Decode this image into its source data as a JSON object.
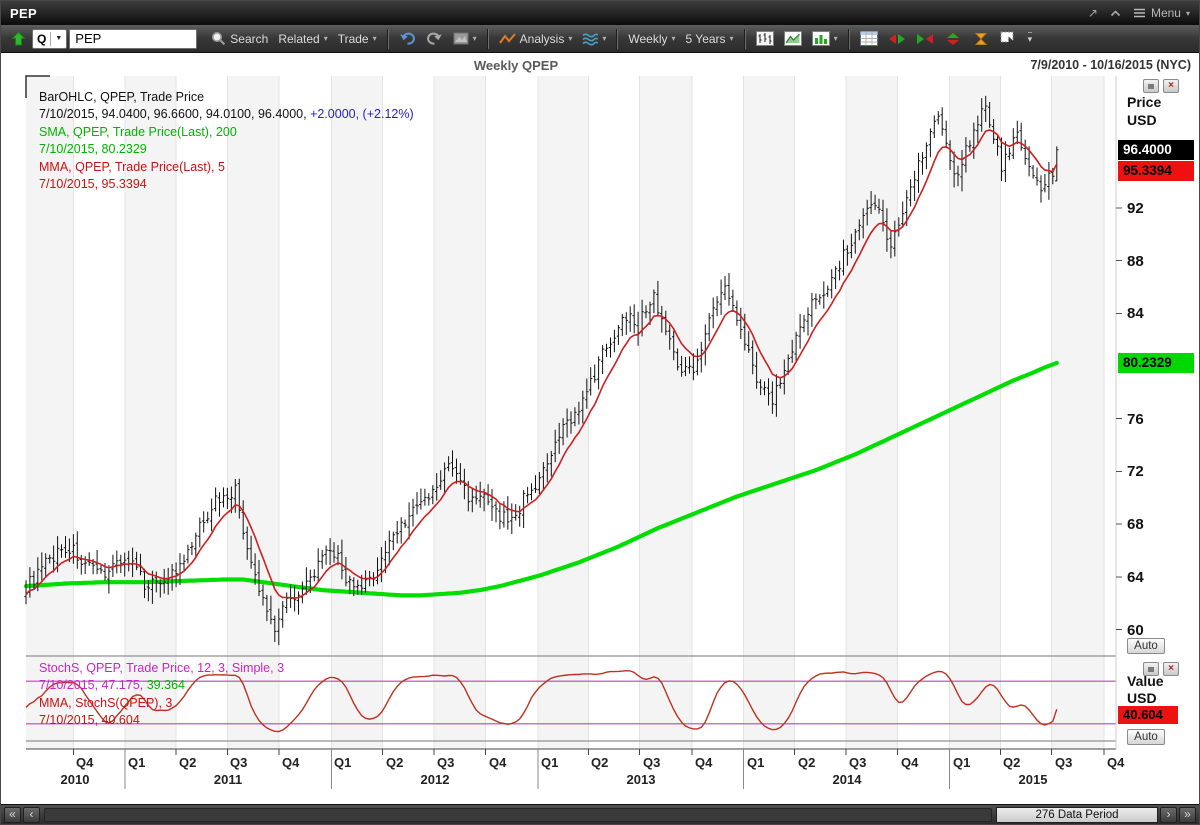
{
  "window": {
    "title": "PEP",
    "menu_label": "Menu"
  },
  "toolbar": {
    "quote_button": "Q",
    "symbol_value": "PEP",
    "search_label": "Search",
    "related_label": "Related",
    "trade_label": "Trade",
    "analysis_label": "Analysis",
    "period_label": "Weekly",
    "range_label": "5 Years"
  },
  "chart": {
    "title": "Weekly QPEP",
    "date_range": "7/9/2010 - 10/16/2015 (NYC)",
    "price_axis": {
      "label_line1": "Price",
      "label_line2": "USD",
      "auto_label": "Auto",
      "ticks": [
        92,
        88,
        84,
        76,
        72,
        68,
        64,
        60
      ],
      "badges": [
        {
          "text": "96.4000",
          "price": 96.4,
          "bg": "#000000",
          "fg": "#ffffff",
          "name": "price-badge-close"
        },
        {
          "text": "95.3394",
          "price": 95.3394,
          "bg": "#ee1111",
          "fg": "#000000",
          "name": "price-badge-mma"
        },
        {
          "text": "80.2329",
          "price": 80.2329,
          "bg": "#00d800",
          "fg": "#000000",
          "name": "price-badge-sma"
        }
      ]
    },
    "value_axis": {
      "label_line1": "Value",
      "label_line2": "USD",
      "auto_label": "Auto",
      "badge": {
        "text": "40.604",
        "value": 40.604,
        "bg": "#ee1111",
        "fg": "#000000"
      }
    },
    "legend_main": [
      [
        {
          "t": "BarOHLC, QPEP, Trade Price",
          "c": "#111111"
        }
      ],
      [
        {
          "t": "7/10/2015, 94.0400, 96.6600, 94.0100, 96.4000, ",
          "c": "#111111"
        },
        {
          "t": "+2.0000, (+2.12%)",
          "c": "#2222cc"
        }
      ],
      [
        {
          "t": "SMA, QPEP, Trade Price(Last), 200",
          "c": "#00b300"
        }
      ],
      [
        {
          "t": "7/10/2015, 80.2329",
          "c": "#00b300"
        }
      ],
      [
        {
          "t": "MMA, QPEP, Trade Price(Last), 5",
          "c": "#cc1111"
        }
      ],
      [
        {
          "t": "7/10/2015, 95.3394",
          "c": "#cc1111"
        }
      ]
    ],
    "legend_stoch": [
      [
        {
          "t": "StochS, QPEP, Trade Price, 12, 3, Simple, 3",
          "c": "#cc22cc"
        }
      ],
      [
        {
          "t": "7/10/2015, 47.175, ",
          "c": "#cc22cc"
        },
        {
          "t": "39.364",
          "c": "#00b300"
        }
      ],
      [
        {
          "t": "MMA, StochS(QPEP), 3",
          "c": "#cc1111"
        }
      ],
      [
        {
          "t": "7/10/2015, 40.604",
          "c": "#cc1111"
        }
      ]
    ]
  },
  "chart_data": {
    "type": "ohlc",
    "title": "Weekly QPEP",
    "instrument": "QPEP",
    "period": "Weekly",
    "bars_count": 262,
    "x_range_weeks": [
      0,
      276
    ],
    "price_range": [
      58,
      102
    ],
    "bar_color": "#111111",
    "sma200_color": "#00dd00",
    "mma5_color": "#cc2020",
    "sma200_last": 80.2329,
    "mma5_last": 95.3394,
    "last_bar": {
      "date": "7/10/2015",
      "open": 94.04,
      "high": 96.66,
      "low": 94.01,
      "close": 96.4,
      "change": "+2.0000",
      "change_pct": "(+2.12%)"
    },
    "close_anchors": [
      [
        0,
        63.2
      ],
      [
        3,
        64.2
      ],
      [
        6,
        65.3
      ],
      [
        9,
        66.2
      ],
      [
        12,
        66
      ],
      [
        15,
        64.8
      ],
      [
        18,
        64.2
      ],
      [
        21,
        64.6
      ],
      [
        24,
        65.4
      ],
      [
        27,
        64.9
      ],
      [
        30,
        63.5
      ],
      [
        33,
        63.6
      ],
      [
        36,
        64.1
      ],
      [
        39,
        64.6
      ],
      [
        42,
        66.3
      ],
      [
        45,
        68.4
      ],
      [
        48,
        69.8
      ],
      [
        51,
        70.2
      ],
      [
        53,
        70.6
      ],
      [
        55,
        67.5
      ],
      [
        57,
        64.8
      ],
      [
        59,
        63
      ],
      [
        61,
        61.5
      ],
      [
        63,
        60.2
      ],
      [
        65,
        61.8
      ],
      [
        67,
        62.8
      ],
      [
        69,
        62.5
      ],
      [
        71,
        63.3
      ],
      [
        73,
        64.4
      ],
      [
        75,
        65.2
      ],
      [
        77,
        66
      ],
      [
        79,
        65.4
      ],
      [
        81,
        64
      ],
      [
        83,
        62.9
      ],
      [
        85,
        63.2
      ],
      [
        87,
        63.6
      ],
      [
        89,
        64.8
      ],
      [
        91,
        65.9
      ],
      [
        93,
        67.2
      ],
      [
        95,
        68
      ],
      [
        97,
        68.6
      ],
      [
        99,
        69.3
      ],
      [
        101,
        69.8
      ],
      [
        103,
        70.3
      ],
      [
        105,
        71.4
      ],
      [
        107,
        72.4
      ],
      [
        109,
        72
      ],
      [
        111,
        70.6
      ],
      [
        113,
        69.8
      ],
      [
        115,
        70.4
      ],
      [
        117,
        69.4
      ],
      [
        119,
        68.8
      ],
      [
        121,
        68.5
      ],
      [
        123,
        68.3
      ],
      [
        125,
        69.2
      ],
      [
        127,
        70.6
      ],
      [
        129,
        71
      ],
      [
        131,
        71.8
      ],
      [
        133,
        73
      ],
      [
        135,
        74.6
      ],
      [
        137,
        75.8
      ],
      [
        139,
        76.4
      ],
      [
        141,
        77.2
      ],
      [
        143,
        78.6
      ],
      [
        145,
        80.2
      ],
      [
        147,
        81.6
      ],
      [
        149,
        82.4
      ],
      [
        151,
        83.4
      ],
      [
        153,
        84.2
      ],
      [
        155,
        83
      ],
      [
        157,
        84.4
      ],
      [
        159,
        85.3
      ],
      [
        161,
        83.6
      ],
      [
        163,
        81.8
      ],
      [
        165,
        80.4
      ],
      [
        167,
        79.6
      ],
      [
        169,
        79.9
      ],
      [
        171,
        81.6
      ],
      [
        173,
        83.4
      ],
      [
        175,
        85
      ],
      [
        177,
        85.8
      ],
      [
        179,
        84.6
      ],
      [
        181,
        83.2
      ],
      [
        183,
        81
      ],
      [
        185,
        79.2
      ],
      [
        187,
        78
      ],
      [
        189,
        77.6
      ],
      [
        191,
        78.9
      ],
      [
        193,
        80.6
      ],
      [
        195,
        82.2
      ],
      [
        197,
        83.4
      ],
      [
        199,
        84.6
      ],
      [
        201,
        85.4
      ],
      [
        203,
        86.3
      ],
      [
        205,
        87.2
      ],
      [
        207,
        88.4
      ],
      [
        209,
        89.2
      ],
      [
        211,
        90.4
      ],
      [
        213,
        91.6
      ],
      [
        215,
        92.4
      ],
      [
        217,
        91
      ],
      [
        219,
        89.2
      ],
      [
        221,
        90.6
      ],
      [
        223,
        92.8
      ],
      [
        225,
        94.6
      ],
      [
        227,
        96.2
      ],
      [
        229,
        97.8
      ],
      [
        231,
        99.4
      ],
      [
        233,
        97
      ],
      [
        235,
        94.2
      ],
      [
        237,
        95.6
      ],
      [
        239,
        97.2
      ],
      [
        241,
        98.8
      ],
      [
        243,
        99.6
      ],
      [
        245,
        97.4
      ],
      [
        247,
        95.2
      ],
      [
        249,
        96.4
      ],
      [
        251,
        97.6
      ],
      [
        253,
        96
      ],
      [
        255,
        94.4
      ],
      [
        257,
        93.2
      ],
      [
        259,
        94.4
      ],
      [
        261,
        96.4
      ]
    ],
    "sma200_anchors": [
      [
        0,
        63.3
      ],
      [
        10,
        63.5
      ],
      [
        20,
        63.6
      ],
      [
        30,
        63.6
      ],
      [
        40,
        63.7
      ],
      [
        50,
        63.8
      ],
      [
        55,
        63.8
      ],
      [
        60,
        63.6
      ],
      [
        65,
        63.4
      ],
      [
        70,
        63.2
      ],
      [
        75,
        63
      ],
      [
        80,
        62.9
      ],
      [
        85,
        62.8
      ],
      [
        90,
        62.7
      ],
      [
        95,
        62.6
      ],
      [
        100,
        62.6
      ],
      [
        105,
        62.7
      ],
      [
        110,
        62.8
      ],
      [
        115,
        63
      ],
      [
        120,
        63.3
      ],
      [
        125,
        63.7
      ],
      [
        130,
        64.1
      ],
      [
        135,
        64.6
      ],
      [
        140,
        65.1
      ],
      [
        145,
        65.7
      ],
      [
        150,
        66.3
      ],
      [
        155,
        67
      ],
      [
        160,
        67.7
      ],
      [
        165,
        68.3
      ],
      [
        170,
        68.9
      ],
      [
        175,
        69.5
      ],
      [
        180,
        70.1
      ],
      [
        185,
        70.6
      ],
      [
        190,
        71.1
      ],
      [
        195,
        71.6
      ],
      [
        200,
        72.1
      ],
      [
        205,
        72.7
      ],
      [
        210,
        73.3
      ],
      [
        215,
        74
      ],
      [
        220,
        74.7
      ],
      [
        225,
        75.4
      ],
      [
        230,
        76.1
      ],
      [
        235,
        76.8
      ],
      [
        240,
        77.5
      ],
      [
        245,
        78.2
      ],
      [
        250,
        78.9
      ],
      [
        255,
        79.5
      ],
      [
        258,
        79.9
      ],
      [
        261,
        80.2329
      ]
    ],
    "quarter_boundaries_weeks": [
      12,
      25.1,
      38,
      51,
      64.1,
      77.3,
      90.3,
      103.3,
      116.4,
      129.6,
      142.4,
      155.4,
      168.6,
      181.7,
      194.6,
      207.6,
      220.7,
      233.9,
      246.7,
      259.7,
      272.9
    ],
    "quarter_labels": [
      "Q4",
      "Q1",
      "Q2",
      "Q3",
      "Q4",
      "Q1",
      "Q2",
      "Q3",
      "Q4",
      "Q1",
      "Q2",
      "Q3",
      "Q4",
      "Q1",
      "Q2",
      "Q3",
      "Q4",
      "Q1",
      "Q2",
      "Q3",
      "Q4"
    ],
    "year_labels": [
      {
        "label": "2010",
        "week": 12.4
      },
      {
        "label": "2011",
        "week": 51.2
      },
      {
        "label": "2012",
        "week": 103.5
      },
      {
        "label": "2013",
        "week": 155.7
      },
      {
        "label": "2014",
        "week": 207.8
      },
      {
        "label": "2015",
        "week": 255
      }
    ],
    "stoch": {
      "k_period": 12,
      "k_smooth": 3,
      "d_smooth": 3,
      "levels": [
        80,
        20
      ],
      "level_color": "#bb44bb",
      "line_color": "#c03020",
      "last_k": 47.175,
      "last_d": 39.364,
      "mma_last": 40.604
    }
  },
  "footer": {
    "data_period": "276 Data Period"
  }
}
